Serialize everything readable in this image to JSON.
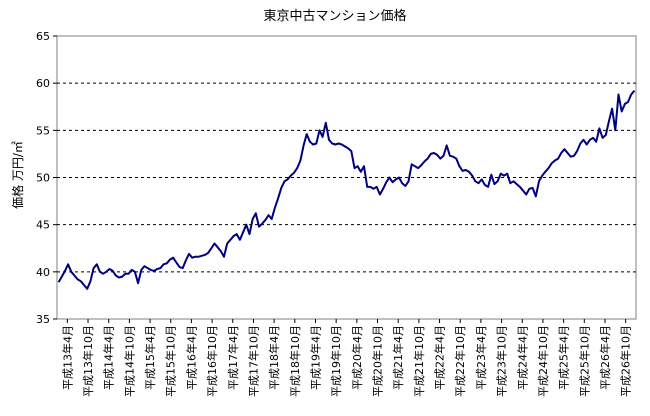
{
  "chart_data": {
    "type": "line",
    "title": "東京中古マンション価格",
    "ylabel": "価格 万円/㎡",
    "xlabel": "",
    "ylim": [
      35,
      65
    ],
    "yticks": [
      35,
      40,
      45,
      50,
      55,
      60,
      65
    ],
    "grid": "horizontal-dashed",
    "line_color": "#000080",
    "x_tick_labels": [
      "平成13年4月",
      "平成13年10月",
      "平成14年4月",
      "平成14年10月",
      "平成15年4月",
      "平成15年10月",
      "平成16年4月",
      "平成16年10月",
      "平成17年4月",
      "平成17年10月",
      "平成18年4月",
      "平成18年10月",
      "平成19年4月",
      "平成19年10月",
      "平成20年4月",
      "平成20年10月",
      "平成21年4月",
      "平成21年10月",
      "平成22年4月",
      "平成22年10月",
      "平成23年4月",
      "平成23年10月",
      "平成24年4月",
      "平成24年10月",
      "平成25年4月",
      "平成25年10月",
      "平成26年4月",
      "平成26年10月"
    ],
    "series": [
      {
        "values": [
          38.9,
          39.5,
          40.1,
          40.8,
          40.0,
          39.6,
          39.2,
          39.0,
          38.6,
          38.2,
          39.0,
          40.4,
          40.8,
          40.0,
          39.8,
          40.0,
          40.3,
          40.1,
          39.6,
          39.4,
          39.5,
          39.8,
          39.8,
          40.2,
          40.0,
          38.8,
          40.2,
          40.6,
          40.4,
          40.2,
          40.1,
          40.3,
          40.4,
          40.8,
          40.9,
          41.3,
          41.5,
          41.0,
          40.5,
          40.4,
          41.2,
          41.9,
          41.5,
          41.6,
          41.6,
          41.7,
          41.8,
          42.0,
          42.5,
          43.0,
          42.6,
          42.2,
          41.6,
          43.0,
          43.4,
          43.8,
          44.0,
          43.4,
          44.2,
          45.0,
          44.0,
          45.6,
          46.2,
          44.8,
          45.1,
          45.5,
          46.0,
          45.6,
          46.8,
          47.8,
          48.9,
          49.6,
          49.8,
          50.2,
          50.5,
          51.0,
          51.8,
          53.4,
          54.6,
          53.8,
          53.5,
          53.6,
          55.0,
          54.3,
          55.8,
          54.0,
          53.6,
          53.5,
          53.6,
          53.5,
          53.3,
          53.1,
          52.8,
          51.0,
          51.2,
          50.6,
          51.2,
          49.0,
          49.0,
          48.8,
          49.0,
          48.2,
          48.8,
          49.5,
          50.0,
          49.5,
          49.8,
          50.0,
          49.4,
          49.1,
          49.6,
          51.4,
          51.2,
          51.0,
          51.3,
          51.7,
          52.0,
          52.5,
          52.6,
          52.4,
          52.0,
          52.3,
          53.4,
          52.3,
          52.2,
          52.0,
          51.2,
          50.7,
          50.8,
          50.6,
          50.2,
          49.6,
          49.4,
          49.8,
          49.2,
          49.0,
          50.3,
          49.3,
          49.6,
          50.4,
          50.2,
          50.4,
          49.4,
          49.6,
          49.3,
          49.0,
          48.6,
          48.2,
          48.8,
          48.9,
          48.0,
          49.6,
          50.2,
          50.6,
          51.0,
          51.5,
          51.8,
          52.0,
          52.6,
          53.0,
          52.6,
          52.2,
          52.3,
          52.8,
          53.6,
          54.0,
          53.5,
          54.0,
          54.2,
          53.8,
          55.2,
          54.2,
          54.5,
          56.0,
          57.3,
          55.0,
          58.8,
          57.0,
          57.8,
          58.0,
          58.8,
          59.2
        ]
      }
    ]
  }
}
